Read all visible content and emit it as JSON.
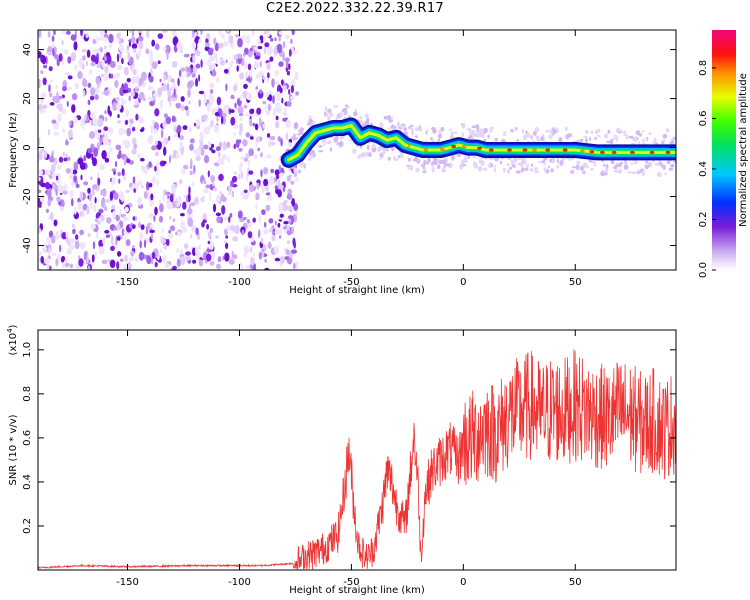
{
  "figure_title": "C2E2.2022.332.22.39.R17",
  "colors": {
    "snr_line": "#ee3333",
    "axis": "#000000",
    "background": "#ffffff"
  },
  "chart_data": [
    {
      "type": "heatmap",
      "title": "C2E2.2022.332.22.39.R17",
      "xlabel": "Height of straight line (km)",
      "ylabel": "Frequency (Hz)",
      "xlim": [
        -190,
        95
      ],
      "ylim": [
        -50,
        48
      ],
      "x_ticks": [
        -150,
        -100,
        -50,
        0,
        50
      ],
      "y_ticks": [
        -40,
        -20,
        0,
        20,
        40
      ],
      "noise_region_x": [
        -190,
        -76
      ],
      "trace": {
        "x": [
          -78,
          -74,
          -70,
          -66,
          -62,
          -58,
          -54,
          -50,
          -46,
          -42,
          -38,
          -34,
          -30,
          -26,
          -22,
          -18,
          -14,
          -10,
          -6,
          -2,
          2,
          6,
          10,
          20,
          30,
          40,
          50,
          60,
          70,
          80,
          95
        ],
        "y": [
          -5,
          -3,
          2,
          6,
          7,
          8,
          8,
          9,
          4,
          6,
          5,
          3,
          4,
          1,
          0,
          -1,
          -1,
          -1,
          0,
          1,
          0,
          0,
          -1,
          -1,
          -1,
          -1,
          -1,
          -2,
          -2,
          -2,
          -2
        ]
      },
      "colorbar": {
        "label": "Normalized spectral amplitude",
        "range": [
          0.0,
          0.95
        ],
        "ticks": [
          0.0,
          0.2,
          0.4,
          0.6,
          0.8
        ]
      },
      "grid": false
    },
    {
      "type": "line",
      "xlabel": "Height of straight line (km)",
      "ylabel": "SNR (10 * v/v)",
      "y_scale_label": "(x10",
      "y_scale_exp": "4",
      "y_scale_close": ")",
      "xlim": [
        -190,
        95
      ],
      "ylim": [
        0,
        1.09
      ],
      "x_ticks": [
        -150,
        -100,
        -50,
        0,
        50
      ],
      "y_ticks": [
        0.2,
        0.4,
        0.6,
        0.8,
        1.0
      ],
      "y_tick_labels": [
        "0.2",
        "0.4",
        "0.6",
        "0.8",
        "1.0"
      ],
      "series": [
        {
          "color": "#ee3333",
          "x": [
            -190,
            -170,
            -150,
            -120,
            -90,
            -76,
            -70,
            -62,
            -56,
            -54,
            -51,
            -49,
            -47,
            -45,
            -43,
            -40,
            -38,
            -36,
            -34,
            -32,
            -30,
            -28,
            -26,
            -24,
            -22,
            -20,
            -19,
            -17,
            -14,
            -10,
            -6,
            -2,
            0,
            5,
            10,
            15,
            20,
            25,
            30,
            35,
            40,
            45,
            50,
            55,
            60,
            65,
            70,
            75,
            80,
            85,
            90,
            95
          ],
          "y": [
            0.01,
            0.02,
            0.015,
            0.02,
            0.02,
            0.03,
            0.06,
            0.1,
            0.16,
            0.3,
            0.55,
            0.3,
            0.12,
            0.08,
            0.05,
            0.1,
            0.2,
            0.3,
            0.45,
            0.4,
            0.3,
            0.25,
            0.2,
            0.4,
            0.62,
            0.35,
            0.05,
            0.35,
            0.45,
            0.5,
            0.55,
            0.5,
            0.58,
            0.6,
            0.65,
            0.62,
            0.7,
            0.72,
            0.75,
            0.7,
            0.73,
            0.72,
            0.75,
            0.72,
            0.7,
            0.68,
            0.72,
            0.7,
            0.66,
            0.68,
            0.64,
            0.68
          ]
        }
      ],
      "grid": false
    }
  ]
}
